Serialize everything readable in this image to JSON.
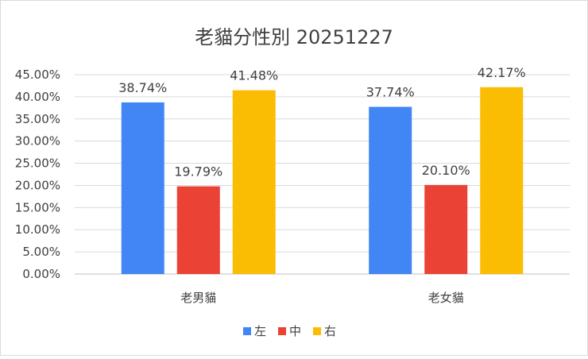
{
  "chart_data": {
    "type": "bar",
    "title": "老貓分性別 20251227",
    "categories": [
      "老男貓",
      "老女貓"
    ],
    "series": [
      {
        "name": "左",
        "color": "#4285F4",
        "values": [
          38.74,
          37.74
        ],
        "labels": [
          "38.74%",
          "37.74%"
        ]
      },
      {
        "name": "中",
        "color": "#EA4335",
        "values": [
          19.79,
          20.1
        ],
        "labels": [
          "19.79%",
          "20.10%"
        ]
      },
      {
        "name": "右",
        "color": "#FBBC04",
        "values": [
          41.48,
          42.17
        ],
        "labels": [
          "41.48%",
          "42.17%"
        ]
      }
    ],
    "ylim": [
      0,
      45
    ],
    "y_ticks": [
      "0.00%",
      "5.00%",
      "10.00%",
      "15.00%",
      "20.00%",
      "25.00%",
      "30.00%",
      "35.00%",
      "40.00%",
      "45.00%"
    ],
    "grid": true,
    "legend_position": "bottom",
    "xlabel": "",
    "ylabel": ""
  }
}
